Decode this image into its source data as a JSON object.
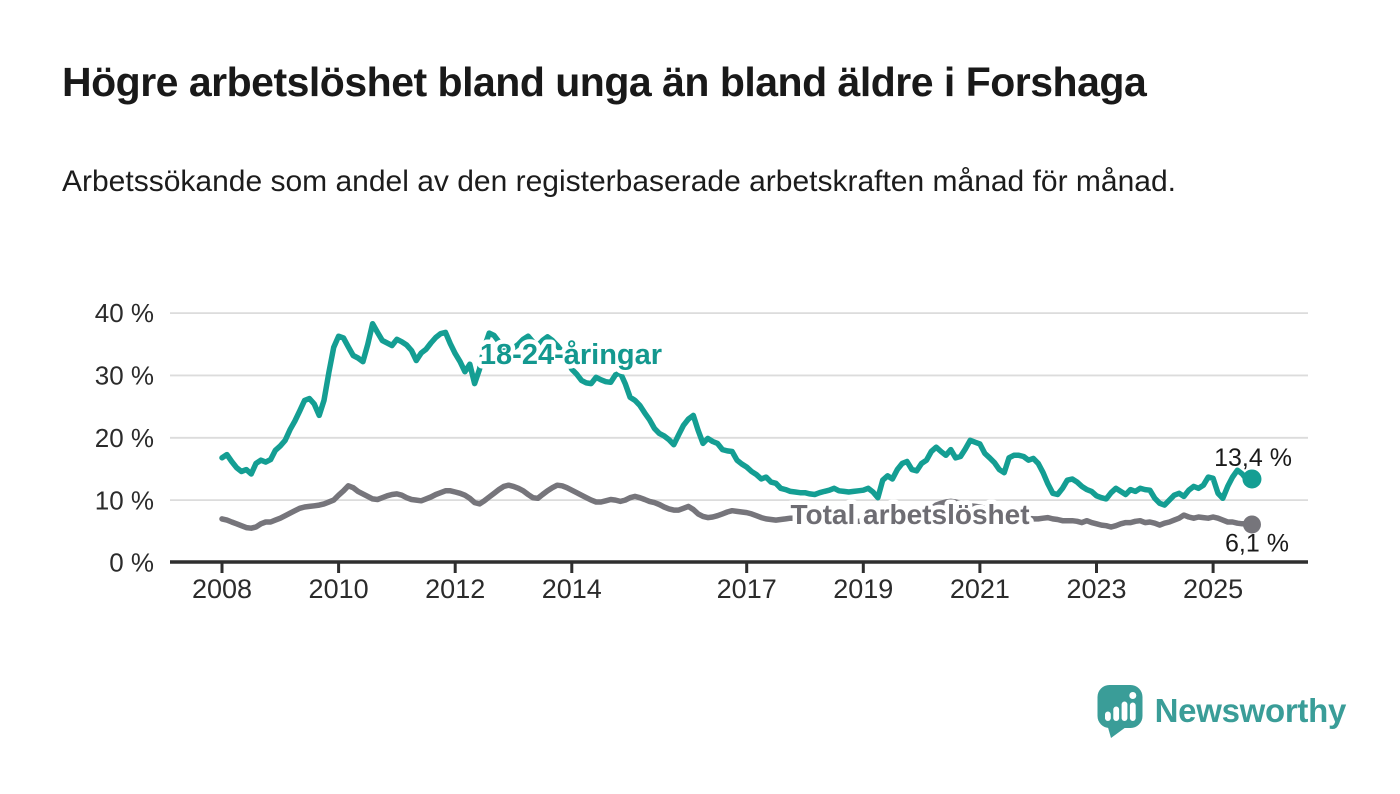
{
  "header": {
    "title": "Högre arbetslöshet bland unga än bland äldre i Forshaga",
    "subtitle": "Arbetssökande som andel av den registerbaserade arbetskraften månad för månad."
  },
  "footer": {
    "brand": "Newsworthy",
    "brand_color": "#3a9d98",
    "logo_icon": "newsworthy-speech-bubble-barchart-icon"
  },
  "chart_data": {
    "type": "line",
    "title": "Högre arbetslöshet bland unga än bland äldre i Forshaga",
    "subtitle": "Arbetssökande som andel av den registerbaserade arbetskraften månad för månad.",
    "unit": "%",
    "grid": true,
    "legend_position": "inline-labels",
    "x_axis": {
      "tick_years": [
        2008,
        2010,
        2012,
        2014,
        2017,
        2019,
        2021,
        2023,
        2025
      ],
      "tick_labels": [
        "2008",
        "2010",
        "2012",
        "2014",
        "2017",
        "2019",
        "2021",
        "2023",
        "2025"
      ],
      "range": [
        2008.0,
        2025.67
      ]
    },
    "y_axis": {
      "ticks": [
        0,
        10,
        20,
        30,
        40
      ],
      "tick_labels": [
        "0 %",
        "10 %",
        "20 %",
        "30 %",
        "40 %"
      ],
      "range": [
        0,
        40
      ]
    },
    "colors": {
      "grid": "#dcdcdc",
      "axis": "#2f2f2f",
      "tick_label": "#2b2b2b",
      "annotation": "#1a1a1a"
    },
    "series": [
      {
        "id": "youth",
        "name": "18-24-åringar",
        "color": "#149e93",
        "label_color": "#13988f",
        "start_year": 2008,
        "frequency": "monthly",
        "end_label": "13,4 %",
        "end_value": 13.4,
        "monthly_values": [
          16.8,
          17.3,
          16.2,
          15.2,
          14.6,
          14.9,
          14.2,
          15.9,
          16.4,
          16.1,
          16.5,
          18.0,
          18.7,
          19.6,
          21.3,
          22.7,
          24.3,
          26.0,
          26.3,
          25.4,
          23.6,
          26.0,
          30.5,
          34.5,
          36.3,
          36.0,
          34.6,
          33.2,
          32.8,
          32.2,
          35.0,
          38.3,
          36.9,
          35.6,
          35.2,
          34.8,
          35.8,
          35.4,
          34.9,
          34.0,
          32.4,
          33.6,
          34.2,
          35.2,
          36.1,
          36.7,
          36.9,
          35.1,
          33.5,
          32.2,
          30.6,
          31.8,
          28.7,
          31.0,
          34.5,
          36.8,
          36.4,
          35.4,
          34.4,
          34.7,
          34.4,
          35.0,
          35.8,
          36.3,
          35.4,
          34.8,
          35.6,
          36.2,
          35.6,
          34.8,
          33.8,
          32.6,
          31.0,
          30.2,
          29.2,
          28.8,
          28.7,
          29.7,
          29.3,
          29.0,
          28.9,
          30.1,
          30.4,
          28.7,
          26.5,
          26.0,
          25.2,
          24.0,
          22.9,
          21.5,
          20.7,
          20.3,
          19.7,
          18.9,
          20.5,
          22.0,
          23.0,
          23.6,
          21.2,
          19.1,
          19.9,
          19.4,
          19.1,
          18.1,
          17.9,
          17.8,
          16.4,
          15.8,
          15.3,
          14.6,
          14.1,
          13.4,
          13.7,
          12.9,
          12.7,
          11.9,
          11.7,
          11.4,
          11.3,
          11.2,
          11.2,
          11.0,
          10.9,
          11.2,
          11.4,
          11.6,
          11.9,
          11.5,
          11.4,
          11.3,
          11.4,
          11.5,
          11.6,
          11.9,
          11.3,
          10.4,
          13.2,
          13.9,
          13.4,
          14.9,
          15.9,
          16.2,
          14.9,
          14.7,
          15.9,
          16.4,
          17.8,
          18.5,
          17.8,
          17.2,
          18.1,
          16.8,
          17.0,
          18.2,
          19.6,
          19.3,
          19.0,
          17.5,
          16.8,
          16.0,
          14.9,
          14.4,
          16.8,
          17.2,
          17.2,
          17.0,
          16.4,
          16.7,
          15.9,
          14.4,
          12.6,
          11.1,
          10.9,
          11.9,
          13.2,
          13.4,
          12.9,
          12.2,
          11.7,
          11.4,
          10.7,
          10.4,
          10.2,
          11.2,
          11.9,
          11.4,
          10.9,
          11.7,
          11.4,
          11.9,
          11.7,
          11.6,
          10.3,
          9.5,
          9.2,
          10.0,
          10.8,
          11.1,
          10.6,
          11.6,
          12.2,
          11.9,
          12.4,
          13.7,
          13.5,
          11.1,
          10.3,
          12.2,
          13.7,
          14.8,
          14.2,
          13.2,
          13.4
        ]
      },
      {
        "id": "total",
        "name": "Total arbetslöshet",
        "color": "#76757b",
        "label_color": "#6e6d73",
        "start_year": 2008,
        "frequency": "monthly",
        "end_label": "6,1 %",
        "end_value": 6.1,
        "monthly_values": [
          7.0,
          6.8,
          6.5,
          6.2,
          5.9,
          5.6,
          5.5,
          5.7,
          6.2,
          6.5,
          6.5,
          6.8,
          7.1,
          7.5,
          7.9,
          8.3,
          8.7,
          8.9,
          9.0,
          9.1,
          9.2,
          9.4,
          9.7,
          10.0,
          10.8,
          11.5,
          12.3,
          12.0,
          11.4,
          11.0,
          10.6,
          10.2,
          10.1,
          10.4,
          10.7,
          10.9,
          11.0,
          10.8,
          10.4,
          10.1,
          10.0,
          9.9,
          10.2,
          10.5,
          10.9,
          11.2,
          11.5,
          11.5,
          11.3,
          11.1,
          10.8,
          10.3,
          9.6,
          9.4,
          9.9,
          10.5,
          11.1,
          11.7,
          12.2,
          12.4,
          12.2,
          11.9,
          11.5,
          10.9,
          10.4,
          10.3,
          10.9,
          11.5,
          12.0,
          12.4,
          12.3,
          12.0,
          11.6,
          11.2,
          10.8,
          10.4,
          10.0,
          9.7,
          9.7,
          9.9,
          10.1,
          10.0,
          9.8,
          10.0,
          10.4,
          10.6,
          10.4,
          10.1,
          9.8,
          9.6,
          9.3,
          8.9,
          8.6,
          8.4,
          8.4,
          8.7,
          9.0,
          8.5,
          7.8,
          7.4,
          7.2,
          7.3,
          7.5,
          7.8,
          8.1,
          8.3,
          8.2,
          8.1,
          8.0,
          7.8,
          7.5,
          7.2,
          7.0,
          6.9,
          6.8,
          6.9,
          7.0,
          7.1,
          7.1,
          7.0,
          6.9,
          6.8,
          6.6,
          6.5,
          6.3,
          6.2,
          6.2,
          6.3,
          6.3,
          6.4,
          6.5,
          6.6,
          6.6,
          6.7,
          6.7,
          6.8,
          6.8,
          6.9,
          7.0,
          7.1,
          7.2,
          7.3,
          7.5,
          7.7,
          7.9,
          8.1,
          8.6,
          9.2,
          9.5,
          9.7,
          9.8,
          9.7,
          9.5,
          9.3,
          9.1,
          9.0,
          8.9,
          8.7,
          8.5,
          8.3,
          8.1,
          7.9,
          7.7,
          7.5,
          7.3,
          7.2,
          7.1,
          7.0,
          7.0,
          7.1,
          7.2,
          7.0,
          6.9,
          6.7,
          6.7,
          6.7,
          6.6,
          6.4,
          6.7,
          6.4,
          6.2,
          6.0,
          5.9,
          5.7,
          5.9,
          6.2,
          6.4,
          6.4,
          6.6,
          6.7,
          6.4,
          6.5,
          6.3,
          6.0,
          6.3,
          6.5,
          6.8,
          7.1,
          7.6,
          7.3,
          7.1,
          7.3,
          7.2,
          7.1,
          7.3,
          7.1,
          6.8,
          6.5,
          6.5,
          6.3,
          6.2,
          6.2,
          6.1
        ]
      }
    ]
  }
}
